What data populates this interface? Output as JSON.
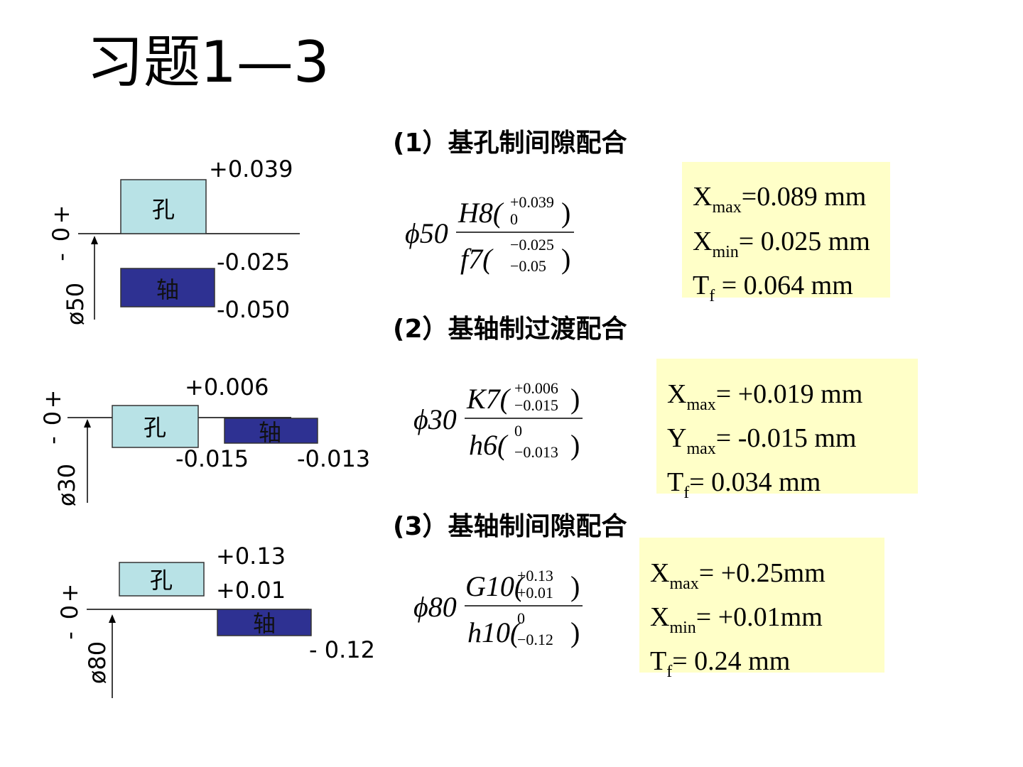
{
  "title": "习题1—3",
  "problems": [
    {
      "heading": "(1）基孔制间隙配合",
      "diagram": {
        "plus": "+",
        "zero": "0",
        "minus": "-",
        "size": "ø50",
        "hole": "孔",
        "shaft": "轴",
        "labels": [
          "+0.039",
          "-0.025",
          "-0.050"
        ]
      },
      "fit": {
        "nominal": "ϕ50",
        "numerator": "H8(",
        "numerator_upper": "+0.039",
        "numerator_lower": "0",
        "numerator_close": ")",
        "denominator": "f7(",
        "denominator_upper": "−0.025",
        "denominator_lower": "−0.05",
        "denominator_close": ")"
      },
      "results": [
        {
          "symbol": "X",
          "sub": "max",
          "text": "=0.089 mm"
        },
        {
          "symbol": "X",
          "sub": "min",
          "text": "= 0.025 mm"
        },
        {
          "symbol": "T",
          "sub": "f",
          "text": " = 0.064 mm"
        }
      ]
    },
    {
      "heading": "(2）基轴制过渡配合",
      "diagram": {
        "plus": "+",
        "zero": "0",
        "minus": "-",
        "size": "ø30",
        "hole": "孔",
        "shaft": "轴",
        "labels": [
          "+0.006",
          "-0.015",
          "-0.013"
        ]
      },
      "fit": {
        "nominal": "ϕ30",
        "numerator": "K7(",
        "numerator_upper": "+0.006",
        "numerator_lower": "−0.015",
        "numerator_close": ")",
        "denominator": "h6(",
        "denominator_upper": "0",
        "denominator_lower": "−0.013",
        "denominator_close": ")"
      },
      "results": [
        {
          "symbol": "X",
          "sub": "max",
          "text": "= +0.019 mm"
        },
        {
          "symbol": "Y",
          "sub": "max",
          "text": "= -0.015 mm"
        },
        {
          "symbol": "T",
          "sub": "f",
          "text": "= 0.034 mm"
        }
      ]
    },
    {
      "heading": "(3）基轴制间隙配合",
      "diagram": {
        "plus": "+",
        "zero": "0",
        "minus": "-",
        "size": "ø80",
        "hole": "孔",
        "shaft": "轴",
        "labels": [
          "+0.13",
          "+0.01",
          "- 0.12"
        ]
      },
      "fit": {
        "nominal": "ϕ80",
        "numerator": "G10(",
        "numerator_upper": "+0.13",
        "numerator_lower": "+0.01",
        "numerator_close": ")",
        "denominator": "h10(",
        "denominator_upper": "0",
        "denominator_lower": "−0.12",
        "denominator_close": ")"
      },
      "results": [
        {
          "symbol": "X",
          "sub": "max",
          "text": "= +0.25mm"
        },
        {
          "symbol": "X",
          "sub": "min",
          "text": "=  +0.01mm"
        },
        {
          "symbol": "T",
          "sub": "f",
          "text": "= 0.24 mm"
        }
      ]
    }
  ]
}
